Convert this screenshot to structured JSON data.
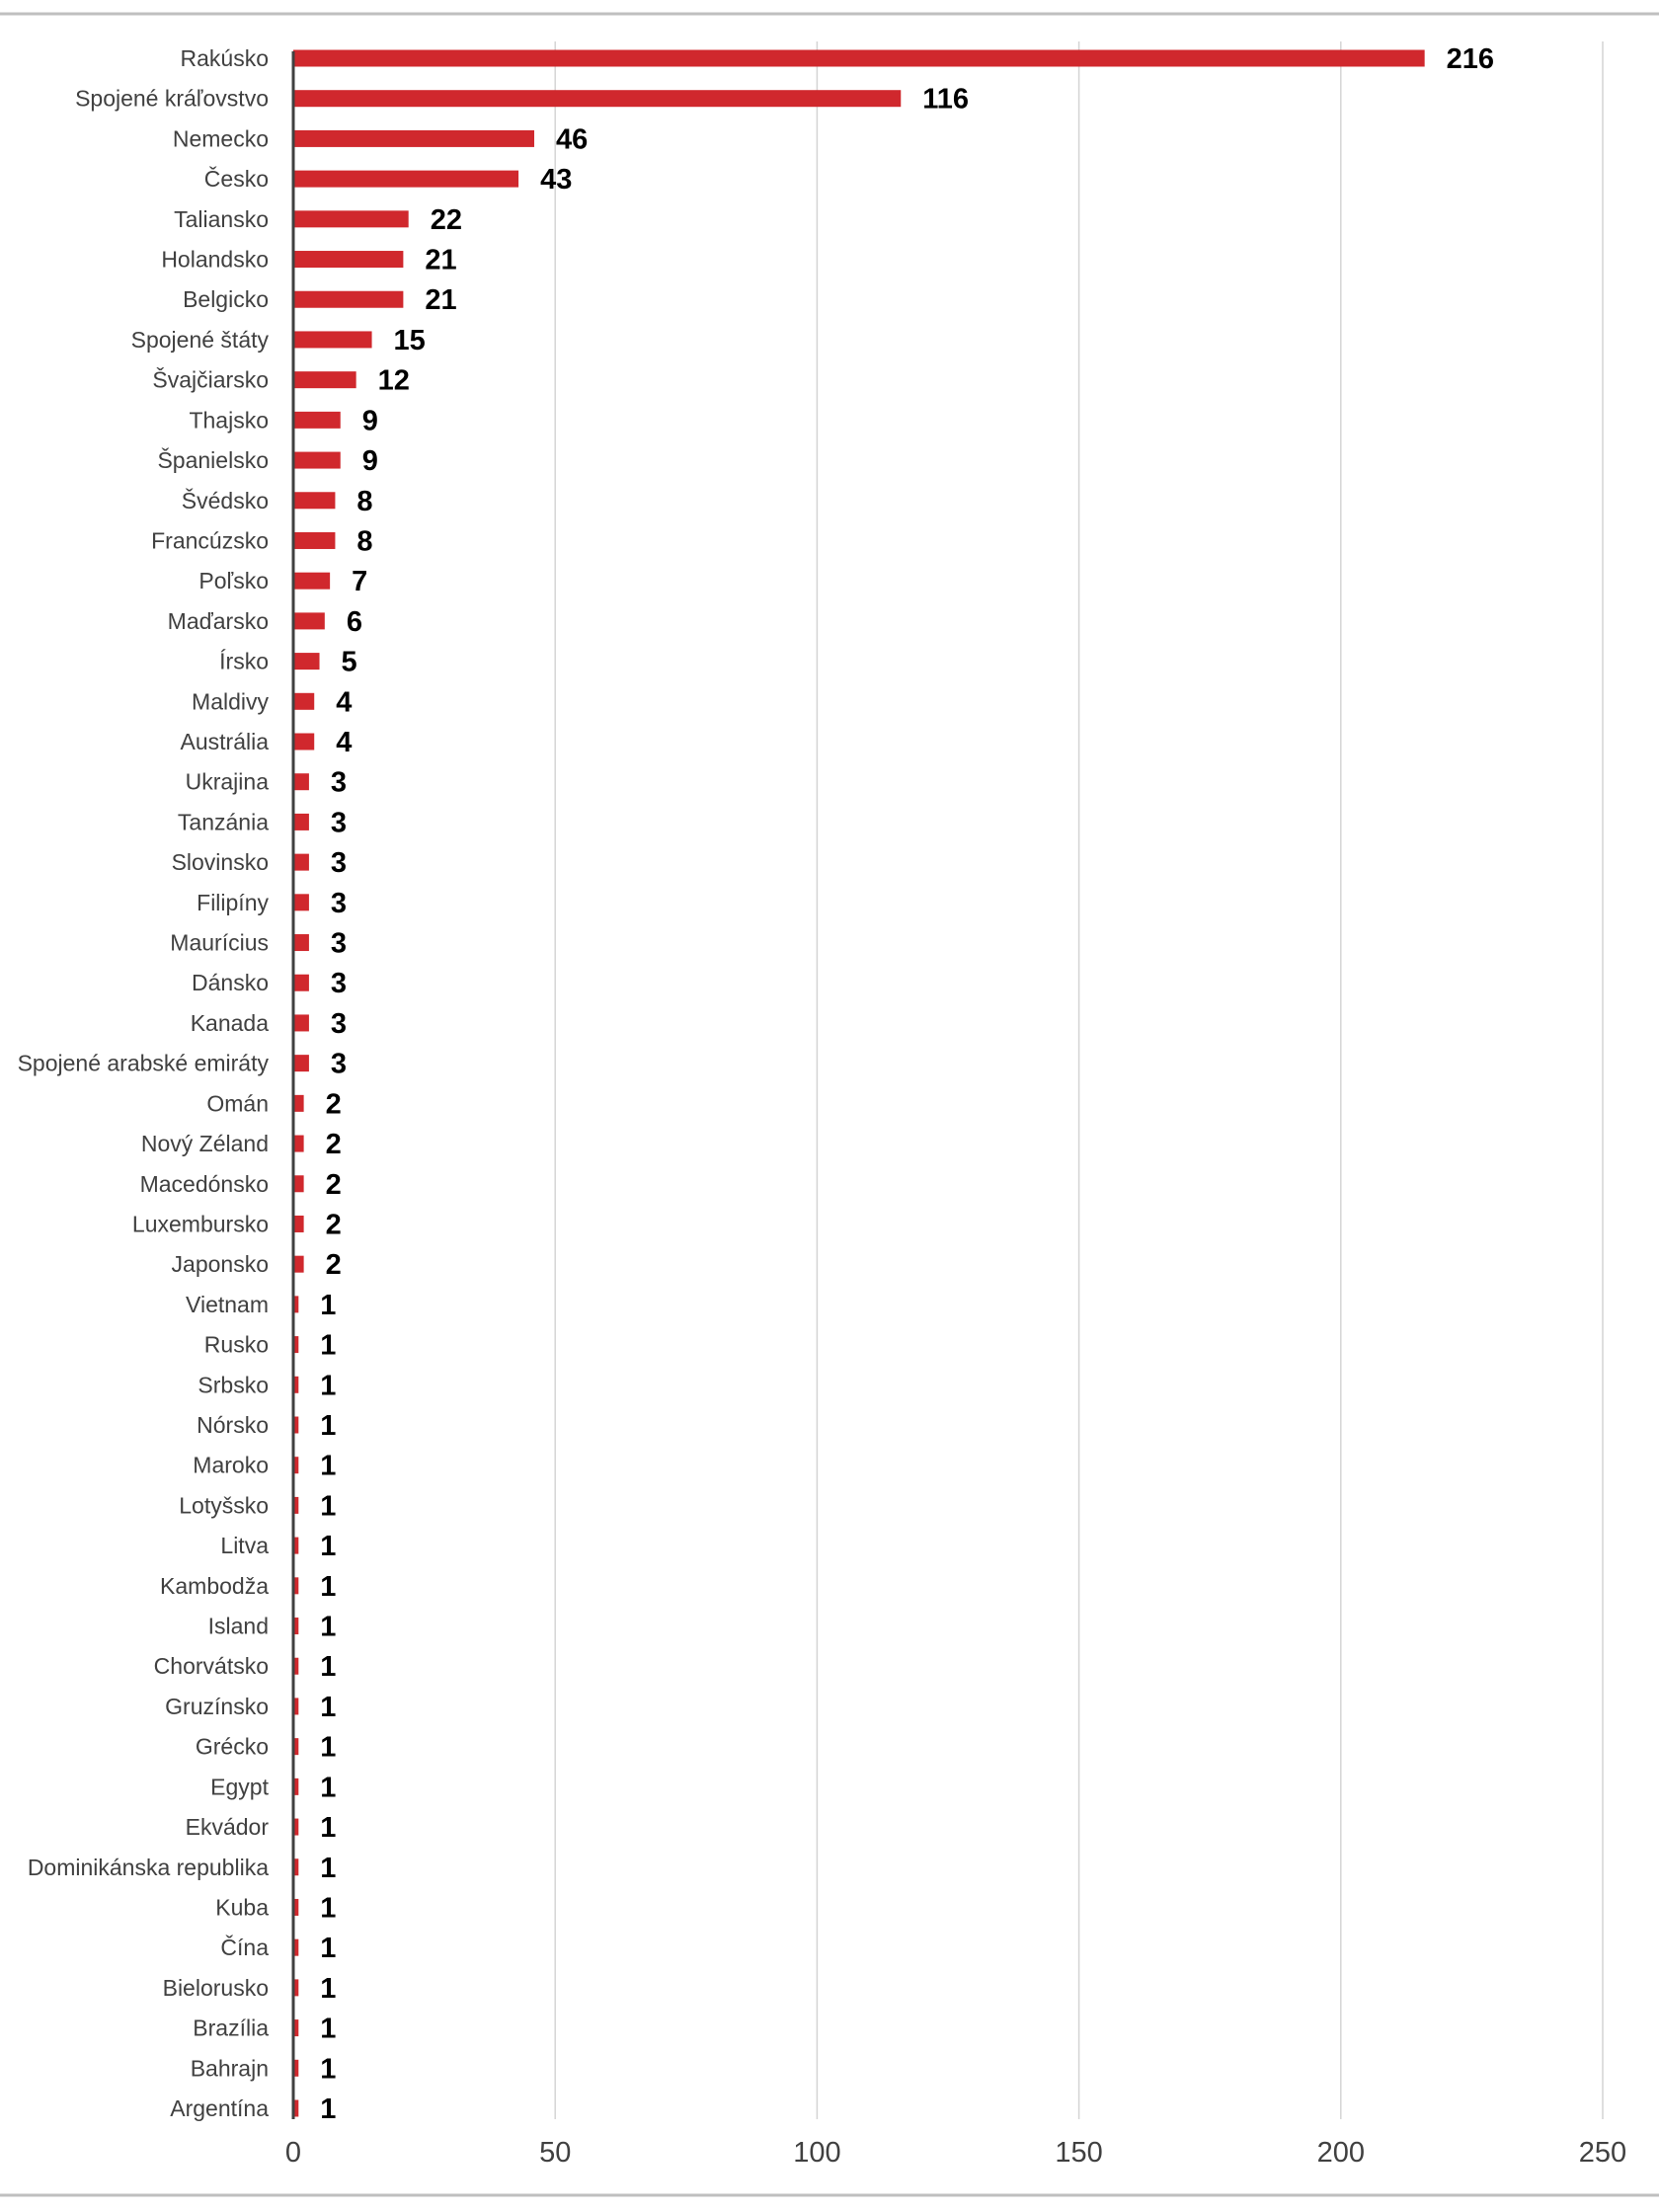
{
  "chart_data": {
    "type": "bar",
    "orientation": "horizontal",
    "title": "",
    "xlabel": "",
    "ylabel": "",
    "xlim": [
      0,
      250
    ],
    "xticks": [
      0,
      50,
      100,
      150,
      200,
      250
    ],
    "grid": true,
    "legend": "none",
    "bar_color": "#d0282d",
    "categories": [
      "Rakúsko",
      "Spojené kráľovstvo",
      "Nemecko",
      "Česko",
      "Taliansko",
      "Holandsko",
      "Belgicko",
      "Spojené štáty",
      "Švajčiarsko",
      "Thajsko",
      "Španielsko",
      "Švédsko",
      "Francúzsko",
      "Poľsko",
      "Maďarsko",
      "Írsko",
      "Maldivy",
      "Austrália",
      "Ukrajina",
      "Tanzánia",
      "Slovinsko",
      "Filipíny",
      "Maurícius",
      "Dánsko",
      "Kanada",
      "Spojené arabské emiráty",
      "Omán",
      "Nový Zéland",
      "Macedónsko",
      "Luxembursko",
      "Japonsko",
      "Vietnam",
      "Rusko",
      "Srbsko",
      "Nórsko",
      "Maroko",
      "Lotyšsko",
      "Litva",
      "Kambodža",
      "Island",
      "Chorvátsko",
      "Gruzínsko",
      "Grécko",
      "Egypt",
      "Ekvádor",
      "Dominikánska republika",
      "Kuba",
      "Čína",
      "Bielorusko",
      "Brazília",
      "Bahrajn",
      "Argentína"
    ],
    "values": [
      216,
      116,
      46,
      43,
      22,
      21,
      21,
      15,
      12,
      9,
      9,
      8,
      8,
      7,
      6,
      5,
      4,
      4,
      3,
      3,
      3,
      3,
      3,
      3,
      3,
      3,
      2,
      2,
      2,
      2,
      2,
      1,
      1,
      1,
      1,
      1,
      1,
      1,
      1,
      1,
      1,
      1,
      1,
      1,
      1,
      1,
      1,
      1,
      1,
      1,
      1,
      1
    ]
  }
}
